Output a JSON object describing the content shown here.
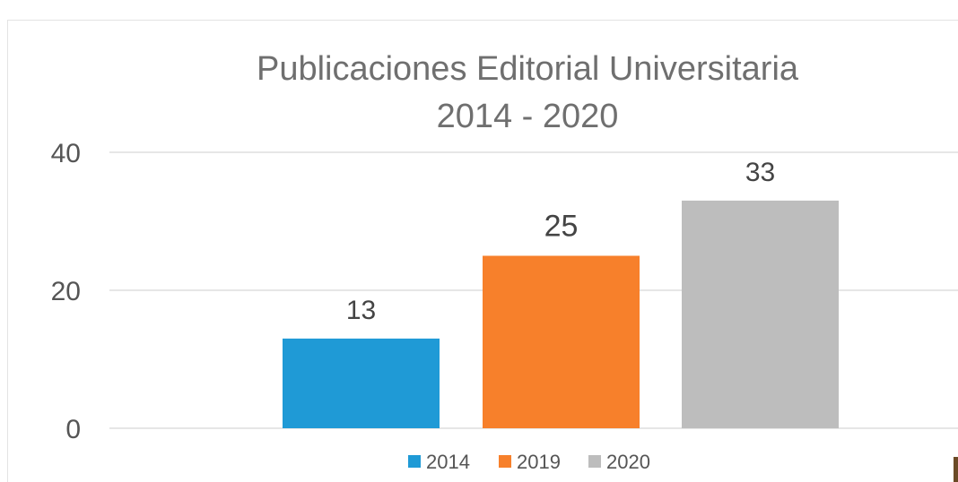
{
  "chart_data": {
    "type": "bar",
    "title": "Publicaciones Editorial Universitaria",
    "subtitle": "2014 - 2020",
    "categories": [
      "2014",
      "2019",
      "2020"
    ],
    "values": [
      13,
      25,
      33
    ],
    "data_labels": [
      "13",
      "25",
      "33"
    ],
    "colors": [
      "#1f9ad6",
      "#f7802b",
      "#bdbdbd"
    ],
    "ylim": [
      0,
      40
    ],
    "yticks": [
      0,
      20,
      40
    ],
    "ytick_labels": [
      "0",
      "20",
      "40"
    ],
    "grid": true,
    "legend": {
      "placement": "bottom",
      "entries": [
        "2014",
        "2019",
        "2020"
      ]
    }
  }
}
